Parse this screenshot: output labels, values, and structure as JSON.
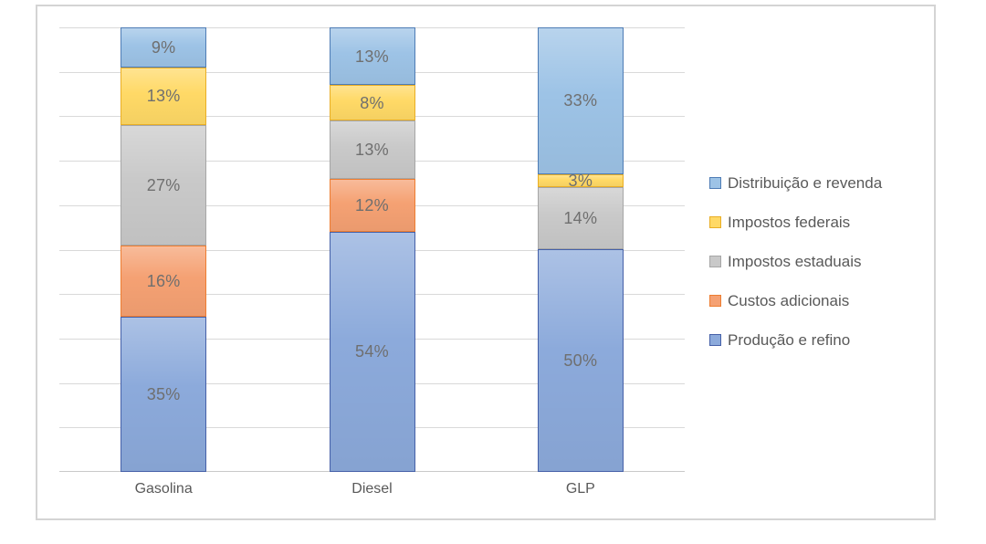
{
  "chart_data": {
    "type": "bar",
    "stacked": true,
    "units": "percent",
    "title": "",
    "categories": [
      "Gasolina",
      "Diesel",
      "GLP"
    ],
    "series": [
      {
        "name": "Distribuição e revenda",
        "values": [
          9,
          13,
          33
        ],
        "fill": "#9dc3e6",
        "border": "#4e7cb5"
      },
      {
        "name": "Impostos federais",
        "values": [
          13,
          8,
          3
        ],
        "fill": "#ffd966",
        "border": "#e9ae25"
      },
      {
        "name": "Impostos estaduais",
        "values": [
          27,
          13,
          14
        ],
        "fill": "#c9c9c9",
        "border": "#a6a6a6"
      },
      {
        "name": "Custos adicionais",
        "values": [
          16,
          12,
          0
        ],
        "fill": "#f5a173",
        "border": "#ed7d31"
      },
      {
        "name": "Produção e refino",
        "values": [
          35,
          54,
          50
        ],
        "fill": "#8caadb",
        "border": "#4560a8"
      }
    ],
    "data_labels": {
      "format": "{value}%",
      "color": "#6f6f6f"
    },
    "y_axis": {
      "min": 0,
      "max": 100,
      "step": 10,
      "tick_labels_visible": false
    },
    "x_axis": {
      "labels": [
        "Gasolina",
        "Diesel",
        "GLP"
      ]
    },
    "grid": true,
    "legend": {
      "position": "right"
    }
  },
  "colors": {
    "gridline": "#d9d9d9",
    "axis_line": "#c9c9c9",
    "frame_border": "#d4d4d4",
    "axis_label_text": "#595959",
    "legend_text": "#595959",
    "background": "#ffffff"
  }
}
